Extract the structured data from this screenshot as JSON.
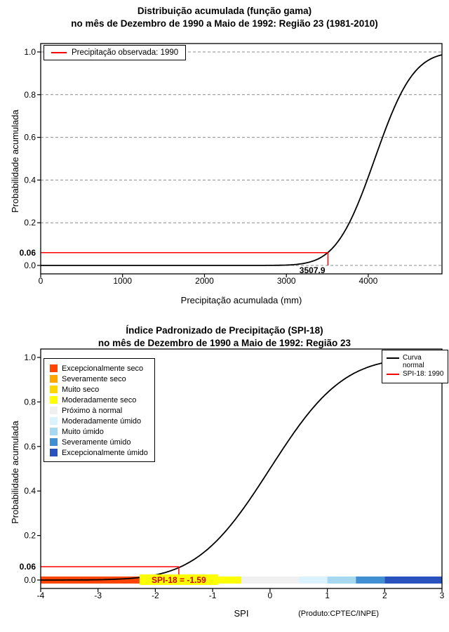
{
  "page": {
    "background": "#ffffff"
  },
  "chart_data": [
    {
      "id": "gamma-cdf",
      "type": "line",
      "title": "Distribuição acumulada (função gama)",
      "subtitle": "no mês de Dezembro de 1990 a Maio de 1992: Região 23 (1981-2010)",
      "xlabel": "Precipitação acumulada (mm)",
      "ylabel": "Probabilidade acumulada",
      "xlim": [
        0,
        4900
      ],
      "ylim": [
        0,
        1
      ],
      "x_ticks": [
        "0",
        "1000",
        "2000",
        "3000",
        "4000"
      ],
      "x_tick_values": [
        0,
        1000,
        2000,
        3000,
        4000
      ],
      "y_ticks": [
        "0.0",
        "0.2",
        "0.4",
        "0.6",
        "0.8",
        "1.0"
      ],
      "y_tick_values": [
        0,
        0.2,
        0.4,
        0.6,
        0.8,
        1.0
      ],
      "grid": {
        "horizontal_dashed": true,
        "color": "#8c8c8c"
      },
      "series": [
        {
          "name": "Distribuição acumulada (função gama)",
          "color": "#000000",
          "model": "normal_cdf_approx",
          "mean": 4080,
          "sd": 370,
          "x_start": 0,
          "x_end": 4900
        }
      ],
      "key_points": [
        [
          0,
          0.0
        ],
        [
          2500,
          0.0
        ],
        [
          3000,
          0.002
        ],
        [
          3507.9,
          0.06
        ],
        [
          3800,
          0.22
        ],
        [
          4080,
          0.5
        ],
        [
          4450,
          0.84
        ],
        [
          4700,
          0.95
        ],
        [
          4900,
          0.99
        ]
      ],
      "annotation": {
        "x": 3507.9,
        "x_label": "3507.9",
        "y": 0.06,
        "y_label": "0.06",
        "line_color": "#ff0000"
      },
      "legend": {
        "position": "top-left",
        "items": [
          {
            "label": "Precipitação observada: 1990",
            "color": "#ff0000",
            "type": "line"
          }
        ]
      }
    },
    {
      "id": "spi-cdf",
      "type": "line",
      "title": "Índice Padronizado de Precipitação (SPI-18)",
      "subtitle": "no mês de Dezembro de 1990 a Maio de 1992: Região 23",
      "xlabel": "SPI",
      "ylabel": "Probabilidade acumulada",
      "xlim": [
        -4,
        3
      ],
      "ylim": [
        0,
        1
      ],
      "x_ticks": [
        "-4",
        "-3",
        "-2",
        "-1",
        "0",
        "1",
        "2",
        "3"
      ],
      "x_tick_values": [
        -4,
        -3,
        -2,
        -1,
        0,
        1,
        2,
        3
      ],
      "y_ticks": [
        "0.0",
        "0.2",
        "0.4",
        "0.6",
        "0.8",
        "1.0"
      ],
      "y_tick_values": [
        0,
        0.2,
        0.4,
        0.6,
        0.8,
        1.0
      ],
      "grid": null,
      "series": [
        {
          "name": "Curva normal",
          "color": "#000000",
          "model": "normal_cdf_approx",
          "mean": 0,
          "sd": 1,
          "x_start": -4,
          "x_end": 3
        }
      ],
      "key_points": [
        [
          -4,
          0.0
        ],
        [
          -2,
          0.023
        ],
        [
          -1.59,
          0.06
        ],
        [
          -1,
          0.159
        ],
        [
          0,
          0.5
        ],
        [
          1,
          0.841
        ],
        [
          2,
          0.977
        ],
        [
          3,
          0.999
        ]
      ],
      "annotation": {
        "x": -1.59,
        "label": "SPI-18 = -1.59",
        "y": 0.06,
        "y_label": "0.06",
        "line_color": "#ff0000",
        "text_color": "#d40000",
        "text_background": "#ffff00"
      },
      "category_legend": [
        {
          "label": "Excepcionalmente seco",
          "color": "#FF4500"
        },
        {
          "label": "Severamente seco",
          "color": "#FFA500"
        },
        {
          "label": "Muito seco",
          "color": "#FFD700"
        },
        {
          "label": "Moderadamente seco",
          "color": "#FFFF00"
        },
        {
          "label": "Próximo à normal",
          "color": "#F0F0F0"
        },
        {
          "label": "Moderadamente úmido",
          "color": "#DBF3FF"
        },
        {
          "label": "Muito úmido",
          "color": "#A6D8F0"
        },
        {
          "label": "Severamente úmido",
          "color": "#3F8FD2"
        },
        {
          "label": "Excepcionalmente úmido",
          "color": "#2A52BE"
        }
      ],
      "category_bar": [
        {
          "from": -4,
          "to": -2,
          "color": "#FF4500"
        },
        {
          "from": -2,
          "to": -1.5,
          "color": "#FFA500"
        },
        {
          "from": -1.5,
          "to": -1,
          "color": "#FFD700"
        },
        {
          "from": -1,
          "to": -0.5,
          "color": "#FFFF00"
        },
        {
          "from": -0.5,
          "to": 0.5,
          "color": "#F0F0F0"
        },
        {
          "from": 0.5,
          "to": 1,
          "color": "#DBF3FF"
        },
        {
          "from": 1,
          "to": 1.5,
          "color": "#A6D8F0"
        },
        {
          "from": 1.5,
          "to": 2,
          "color": "#3F8FD2"
        },
        {
          "from": 2,
          "to": 3,
          "color": "#2A52BE"
        }
      ],
      "legend": {
        "position": "top-right",
        "items": [
          {
            "label": "Curva normal",
            "color": "#000000",
            "type": "line"
          },
          {
            "label": "SPI-18: 1990",
            "color": "#ff0000",
            "type": "line"
          }
        ]
      },
      "credit": "(Produto:CPTEC/INPE)"
    }
  ]
}
